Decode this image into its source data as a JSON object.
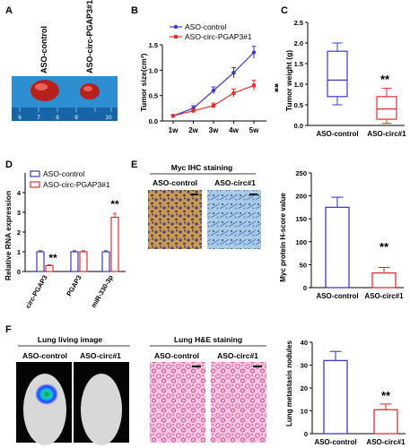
{
  "panels": {
    "a": {
      "label": "A",
      "groups": [
        "ASO-control",
        "ASO-circ-PGAP3#1"
      ],
      "ruler_ticks": [
        "6",
        "7",
        "8",
        "9",
        "10"
      ]
    },
    "b": {
      "label": "B",
      "sig": "**"
    },
    "c": {
      "label": "C",
      "sig": "**"
    },
    "d": {
      "label": "D",
      "sig_circ": "**",
      "sig_mir": "**"
    },
    "e": {
      "label": "E",
      "ihc_title": "Myc IHC staining",
      "groups": [
        "ASO-control",
        "ASO-circ#1"
      ],
      "sig": "**"
    },
    "f": {
      "label": "F",
      "lung_title": "Lung living image",
      "he_title": "Lung H&E staining",
      "groups": [
        "ASO-control",
        "ASO-circ#1"
      ],
      "sig": "**"
    }
  },
  "colors": {
    "control": "#3a3ad0",
    "treat": "#e03030",
    "black": "#000000"
  },
  "chart_data": [
    {
      "id": "B",
      "type": "line",
      "ylabel": "Tumor size(cm³)",
      "categories": [
        "1w",
        "2w",
        "3w",
        "4w",
        "5w"
      ],
      "ylim": [
        0,
        1.5
      ],
      "yticks": [
        "0.0",
        "0.5",
        "1.0",
        "1.5"
      ],
      "series": [
        {
          "name": "ASO-control",
          "values": [
            0.1,
            0.25,
            0.6,
            0.95,
            1.35
          ],
          "err": [
            0.02,
            0.05,
            0.07,
            0.1,
            0.12
          ]
        },
        {
          "name": "ASO-circ-PGAP3#1",
          "values": [
            0.1,
            0.2,
            0.3,
            0.55,
            0.7
          ],
          "err": [
            0.02,
            0.04,
            0.05,
            0.08,
            0.1
          ]
        }
      ]
    },
    {
      "id": "C",
      "type": "box",
      "ylabel": "Tumor weight (g)",
      "categories": [
        "ASO-control",
        "ASO-circ#1"
      ],
      "ylim": [
        0,
        2.5
      ],
      "yticks": [
        "0.0",
        "0.5",
        "1.0",
        "1.5",
        "2.0",
        "2.5"
      ],
      "boxes": [
        {
          "min": 0.5,
          "q1": 0.7,
          "median": 1.1,
          "q3": 1.8,
          "max": 2.0
        },
        {
          "min": 0.05,
          "q1": 0.15,
          "median": 0.4,
          "q3": 0.7,
          "max": 0.9
        }
      ]
    },
    {
      "id": "D",
      "type": "bar",
      "ylabel": "Relative RNA expression",
      "categories": [
        "circ-PGAP3",
        "PGAP3",
        "miR-330-3p"
      ],
      "ylim": [
        0,
        4
      ],
      "yticks": [
        "0",
        "1",
        "2",
        "3",
        "4"
      ],
      "series": [
        {
          "name": "ASO-control",
          "values": [
            1.0,
            1.0,
            1.0
          ],
          "err": [
            0.05,
            0.05,
            0.05
          ]
        },
        {
          "name": "ASO-circ-PGAP3#1",
          "values": [
            0.3,
            1.0,
            2.75
          ],
          "err": [
            0.04,
            0.05,
            0.2
          ]
        }
      ]
    },
    {
      "id": "E",
      "type": "bar",
      "ylabel": "Myc protein H-score value",
      "categories": [
        "ASO-control",
        "ASO-circ#1"
      ],
      "ylim": [
        0,
        250
      ],
      "yticks": [
        "0",
        "50",
        "100",
        "150",
        "200",
        "250"
      ],
      "values": [
        175,
        32
      ],
      "err": [
        22,
        12
      ]
    },
    {
      "id": "F",
      "type": "bar",
      "ylabel": "Lung metastasis nodules",
      "categories": [
        "ASO-control",
        "ASO-circ#1"
      ],
      "ylim": [
        0,
        40
      ],
      "yticks": [
        "0",
        "10",
        "20",
        "30",
        "40"
      ],
      "values": [
        32,
        10.5
      ],
      "err": [
        4,
        2.5
      ]
    }
  ]
}
